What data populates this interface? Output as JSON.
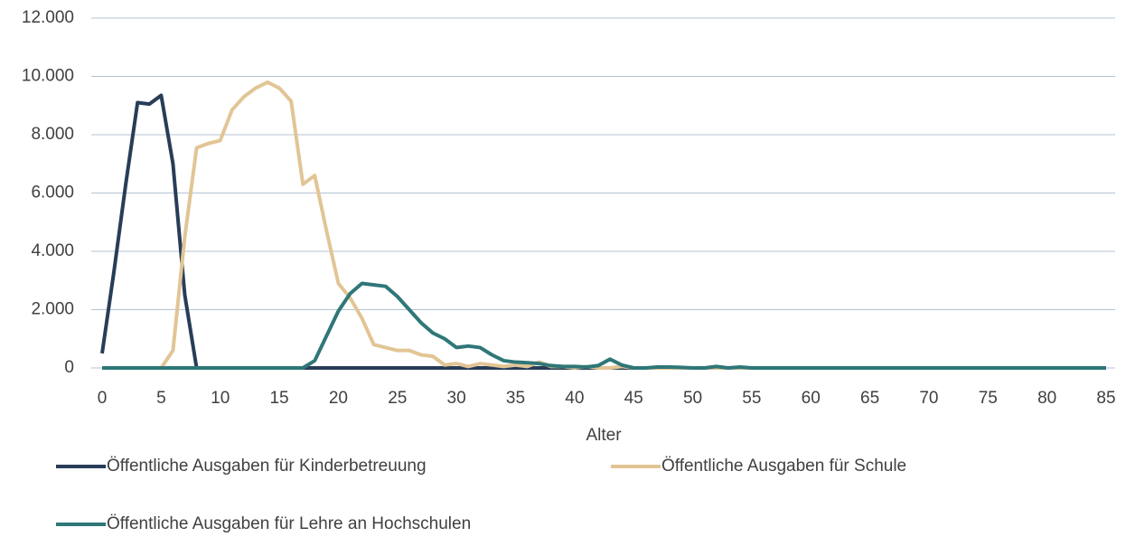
{
  "chart_data": {
    "type": "line",
    "x_label": "Alter",
    "x": [
      0,
      1,
      2,
      3,
      4,
      5,
      6,
      7,
      8,
      9,
      10,
      11,
      12,
      13,
      14,
      15,
      16,
      17,
      18,
      19,
      20,
      21,
      22,
      23,
      24,
      25,
      26,
      27,
      28,
      29,
      30,
      31,
      32,
      33,
      34,
      35,
      36,
      37,
      38,
      39,
      40,
      41,
      42,
      43,
      44,
      45,
      46,
      47,
      48,
      49,
      50,
      51,
      52,
      53,
      54,
      55,
      56,
      57,
      58,
      59,
      60,
      61,
      62,
      63,
      64,
      65,
      66,
      67,
      68,
      69,
      70,
      71,
      72,
      73,
      74,
      75,
      76,
      77,
      78,
      79,
      80,
      81,
      82,
      83,
      84,
      85
    ],
    "xlim": [
      0,
      85
    ],
    "xticks": [
      0,
      5,
      10,
      15,
      20,
      25,
      30,
      35,
      40,
      45,
      50,
      55,
      60,
      65,
      70,
      75,
      80,
      85
    ],
    "ylim": [
      0,
      12000
    ],
    "yticks": [
      0,
      {
        "value": 2000,
        "label": "2.000"
      },
      {
        "value": 4000,
        "label": "4.000"
      },
      {
        "value": 6000,
        "label": "6.000"
      },
      {
        "value": 8000,
        "label": "8.000"
      },
      {
        "value": 10000,
        "label": "10.000"
      },
      {
        "value": 12000,
        "label": "12.000"
      }
    ],
    "grid": true,
    "legend": "bottom",
    "series": [
      {
        "name": "Öffentliche Ausgaben für Kinderbetreuung",
        "color": "#283d57",
        "values": [
          500,
          3300,
          6300,
          9100,
          9050,
          9350,
          7000,
          2500,
          0,
          0,
          0,
          0,
          0,
          0,
          0,
          0,
          0,
          0,
          0,
          0,
          0,
          0,
          0,
          0,
          0,
          0,
          0,
          0,
          0,
          0,
          0,
          0,
          0,
          0,
          0,
          0,
          0,
          0,
          0,
          0,
          0,
          0,
          0,
          0,
          0,
          0,
          0,
          0,
          0,
          0,
          0,
          0,
          0,
          0,
          0,
          0,
          0,
          0,
          0,
          0,
          0,
          0,
          0,
          0,
          0,
          0,
          0,
          0,
          0,
          0,
          0,
          0,
          0,
          0,
          0,
          0,
          0,
          0,
          0,
          0,
          0,
          0,
          0,
          0,
          0,
          0
        ]
      },
      {
        "name": "Öffentliche Ausgaben für Schule",
        "color": "#e2c595",
        "values": [
          0,
          0,
          0,
          0,
          0,
          0,
          600,
          4500,
          7550,
          7700,
          7800,
          8850,
          9300,
          9600,
          9800,
          9600,
          9150,
          6300,
          6600,
          4700,
          2900,
          2400,
          1700,
          800,
          700,
          600,
          600,
          450,
          400,
          100,
          150,
          50,
          150,
          100,
          50,
          100,
          50,
          200,
          50,
          50,
          0,
          50,
          0,
          0,
          50,
          0,
          0,
          0,
          0,
          0,
          0,
          0,
          0,
          0,
          0,
          0,
          0,
          0,
          0,
          0,
          0,
          0,
          0,
          0,
          0,
          0,
          0,
          0,
          0,
          0,
          0,
          0,
          0,
          0,
          0,
          0,
          0,
          0,
          0,
          0,
          0,
          0,
          0,
          0,
          0,
          0
        ]
      },
      {
        "name": "Öffentliche Ausgaben für Lehre an Hochschulen",
        "color": "#2f7778",
        "values": [
          0,
          0,
          0,
          0,
          0,
          0,
          0,
          0,
          0,
          0,
          0,
          0,
          0,
          0,
          0,
          0,
          0,
          0,
          250,
          1100,
          1950,
          2550,
          2900,
          2850,
          2800,
          2450,
          2000,
          1550,
          1200,
          1000,
          700,
          750,
          700,
          450,
          250,
          200,
          180,
          150,
          80,
          50,
          50,
          30,
          80,
          300,
          100,
          0,
          0,
          30,
          30,
          20,
          0,
          0,
          50,
          0,
          30,
          0,
          0,
          0,
          0,
          0,
          0,
          0,
          0,
          0,
          0,
          0,
          0,
          0,
          0,
          0,
          0,
          0,
          0,
          0,
          0,
          0,
          0,
          0,
          0,
          0,
          0,
          0,
          0,
          0,
          0,
          0
        ]
      }
    ]
  }
}
